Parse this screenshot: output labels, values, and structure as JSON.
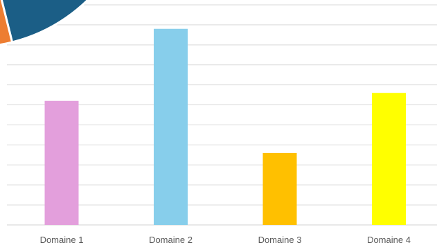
{
  "chart_data": {
    "type": "bar",
    "categories": [
      "Domaine 1",
      "Domaine 2",
      "Domaine 3",
      "Domaine 4"
    ],
    "values": [
      62,
      98,
      36,
      66
    ],
    "ylim": [
      0,
      110
    ],
    "grid": true,
    "legend": "none",
    "bar_colors": [
      "#E39FDC",
      "#87CEEB",
      "#FFC000",
      "#FFFF00"
    ],
    "gridline_color": "#D9D9D9"
  },
  "overlay": {
    "partial_pie_colors": [
      "#1B5E86",
      "#ED7D31",
      "#FFFFFF"
    ]
  }
}
